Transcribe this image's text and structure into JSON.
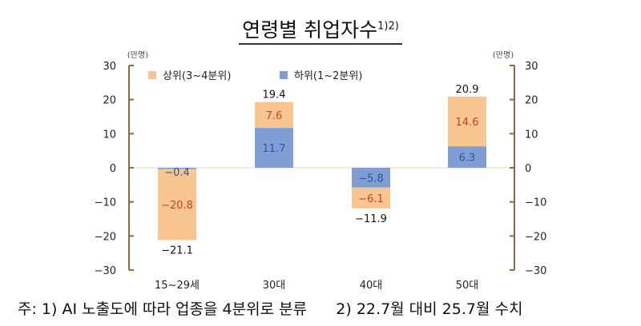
{
  "title": "연령별 취업자수",
  "title_superscript": "1)2)",
  "footnote": "주: 1) AI 노출도에 따라 업종을 4분위로 분류      2) 22.7월 대비 25.7월 수치",
  "colors": {
    "upper": "#F9C591",
    "lower": "#7F9ED3",
    "axis": "#8B6B3D",
    "upper_label": "#C0461A",
    "lower_label": "#2F55A0"
  },
  "chart_data": {
    "type": "bar",
    "stacked": true,
    "categories": [
      "15~29세",
      "30대",
      "40대",
      "50대"
    ],
    "series": [
      {
        "name": "상위(3~4분위)",
        "values": [
          -20.8,
          7.6,
          -6.1,
          14.6
        ]
      },
      {
        "name": "하위(1~2분위)",
        "values": [
          -0.4,
          11.7,
          -5.8,
          6.3
        ]
      }
    ],
    "totals": [
      -21.1,
      19.4,
      -11.9,
      20.9
    ],
    "ylim": [
      -30,
      30
    ],
    "yticks": [
      30,
      20,
      10,
      0,
      -10,
      -20,
      -30
    ],
    "y_unit_left": "(만명)",
    "y_unit_right": "(만명)",
    "legend_placement": "top-left",
    "grid": false
  }
}
